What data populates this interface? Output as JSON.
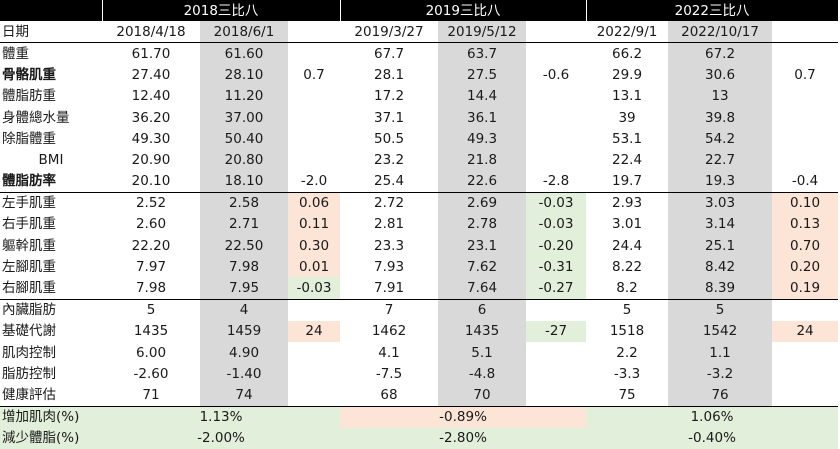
{
  "header": {
    "groups": [
      "2018三比八",
      "2019三比八",
      "2022三比八"
    ],
    "date_label": "日期",
    "dates": [
      "2018/4/18",
      "2018/6/1",
      "2019/3/27",
      "2019/5/12",
      "2022/9/1",
      "2022/10/17"
    ]
  },
  "rows": [
    {
      "label": "體重",
      "bold": false,
      "shade": [
        "",
        "",
        "",
        "",
        "",
        "",
        "",
        "",
        ""
      ],
      "values": [
        "61.70",
        "61.60",
        "",
        "67.7",
        "63.7",
        "",
        "66.2",
        "67.2",
        ""
      ]
    },
    {
      "label": "骨骼肌重",
      "bold": true,
      "shade": [
        "",
        "",
        "",
        "",
        "",
        "",
        "",
        "",
        ""
      ],
      "values": [
        "27.40",
        "28.10",
        "0.7",
        "28.1",
        "27.5",
        "-0.6",
        "29.9",
        "30.6",
        "0.7"
      ]
    },
    {
      "label": "體脂肪重",
      "bold": false,
      "shade": [
        "",
        "",
        "",
        "",
        "",
        "",
        "",
        "",
        ""
      ],
      "values": [
        "12.40",
        "11.20",
        "",
        "17.2",
        "14.4",
        "",
        "13.1",
        "13",
        ""
      ]
    },
    {
      "label": "身體總水量",
      "bold": false,
      "shade": [
        "",
        "",
        "",
        "",
        "",
        "",
        "",
        "",
        ""
      ],
      "values": [
        "36.20",
        "37.00",
        "",
        "37.1",
        "36.1",
        "",
        "39",
        "39.8",
        ""
      ]
    },
    {
      "label": "除脂體重",
      "bold": false,
      "shade": [
        "",
        "",
        "",
        "",
        "",
        "",
        "",
        "",
        ""
      ],
      "values": [
        "49.30",
        "50.40",
        "",
        "50.5",
        "49.3",
        "",
        "53.1",
        "54.2",
        ""
      ]
    },
    {
      "label": "BMI",
      "bold": false,
      "center": true,
      "shade": [
        "",
        "",
        "",
        "",
        "",
        "",
        "",
        "",
        ""
      ],
      "values": [
        "20.90",
        "20.80",
        "",
        "23.2",
        "21.8",
        "",
        "22.4",
        "22.7",
        ""
      ]
    },
    {
      "label": "體脂肪率",
      "bold": true,
      "shade": [
        "",
        "",
        "",
        "",
        "",
        "",
        "",
        "",
        ""
      ],
      "values": [
        "20.10",
        "18.10",
        "-2.0",
        "25.4",
        "22.6",
        "-2.8",
        "19.7",
        "19.3",
        "-0.4"
      ]
    },
    {
      "label": "左手肌重",
      "bold": false,
      "shade": [
        "",
        "",
        "pk",
        "",
        "",
        "gr",
        "",
        "",
        "pk"
      ],
      "values": [
        "2.52",
        "2.58",
        "0.06",
        "2.72",
        "2.69",
        "-0.03",
        "2.93",
        "3.03",
        "0.10"
      ]
    },
    {
      "label": "右手肌重",
      "bold": false,
      "shade": [
        "",
        "",
        "pk",
        "",
        "",
        "gr",
        "",
        "",
        "pk"
      ],
      "values": [
        "2.60",
        "2.71",
        "0.11",
        "2.81",
        "2.78",
        "-0.03",
        "3.01",
        "3.14",
        "0.13"
      ]
    },
    {
      "label": "軀幹肌重",
      "bold": false,
      "shade": [
        "",
        "",
        "pk",
        "",
        "",
        "gr",
        "",
        "",
        "pk"
      ],
      "values": [
        "22.20",
        "22.50",
        "0.30",
        "23.3",
        "23.1",
        "-0.20",
        "24.4",
        "25.1",
        "0.70"
      ]
    },
    {
      "label": "左腳肌重",
      "bold": false,
      "shade": [
        "",
        "",
        "pk",
        "",
        "",
        "gr",
        "",
        "",
        "pk"
      ],
      "values": [
        "7.97",
        "7.98",
        "0.01",
        "7.93",
        "7.62",
        "-0.31",
        "8.22",
        "8.42",
        "0.20"
      ]
    },
    {
      "label": "右腳肌重",
      "bold": false,
      "shade": [
        "",
        "",
        "gr",
        "",
        "",
        "gr",
        "",
        "",
        "pk"
      ],
      "values": [
        "7.98",
        "7.95",
        "-0.03",
        "7.91",
        "7.64",
        "-0.27",
        "8.2",
        "8.39",
        "0.19"
      ]
    },
    {
      "label": "內臟脂肪",
      "bold": false,
      "shade": [
        "",
        "",
        "",
        "",
        "",
        "",
        "",
        "",
        ""
      ],
      "values": [
        "5",
        "4",
        "",
        "7",
        "6",
        "",
        "5",
        "5",
        ""
      ]
    },
    {
      "label": "基礎代謝",
      "bold": false,
      "shade": [
        "",
        "",
        "pk",
        "",
        "",
        "gr",
        "",
        "",
        "pk"
      ],
      "values": [
        "1435",
        "1459",
        "24",
        "1462",
        "1435",
        "-27",
        "1518",
        "1542",
        "24"
      ]
    },
    {
      "label": "肌肉控制",
      "bold": false,
      "shade": [
        "",
        "",
        "",
        "",
        "",
        "",
        "",
        "",
        ""
      ],
      "values": [
        "6.00",
        "4.90",
        "",
        "4.1",
        "5.1",
        "",
        "2.2",
        "1.1",
        ""
      ]
    },
    {
      "label": "脂肪控制",
      "bold": false,
      "shade": [
        "",
        "",
        "",
        "",
        "",
        "",
        "",
        "",
        ""
      ],
      "values": [
        "-2.60",
        "-1.40",
        "",
        "-7.5",
        "-4.8",
        "",
        "-3.3",
        "-3.2",
        ""
      ]
    },
    {
      "label": "健康評估",
      "bold": false,
      "shade": [
        "",
        "",
        "",
        "",
        "",
        "",
        "",
        "",
        ""
      ],
      "values": [
        "71",
        "74",
        "",
        "68",
        "70",
        "",
        "75",
        "76",
        ""
      ]
    }
  ],
  "summary": [
    {
      "label": "增加肌肉(%)",
      "values": [
        "1.13%",
        "-0.89%",
        "1.06%"
      ],
      "shade": [
        "gr",
        "pk",
        "gr"
      ]
    },
    {
      "label": "減少體脂(%)",
      "values": [
        "-2.00%",
        "-2.80%",
        "-0.40%"
      ],
      "shade": [
        "gr",
        "gr",
        "gr"
      ]
    }
  ],
  "colors": {
    "header_bg": "#000000",
    "header_text": "#ffffff",
    "after_column_gray": "#d9d9d9",
    "increase_pink": "#fce4d6",
    "decrease_green": "#e2efda"
  }
}
